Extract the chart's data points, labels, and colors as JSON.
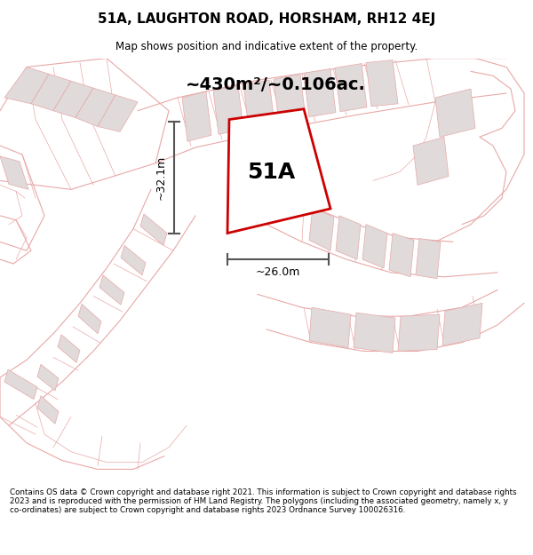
{
  "title_line1": "51A, LAUGHTON ROAD, HORSHAM, RH12 4EJ",
  "title_line2": "Map shows position and indicative extent of the property.",
  "area_label": "~430m²/~0.106ac.",
  "plot_label": "51A",
  "dim_height": "~32.1m",
  "dim_width": "~26.0m",
  "footer": "Contains OS data © Crown copyright and database right 2021. This information is subject to Crown copyright and database rights 2023 and is reproduced with the permission of HM Land Registry. The polygons (including the associated geometry, namely x, y co-ordinates) are subject to Crown copyright and database rights 2023 Ordnance Survey 100026316.",
  "bg_color": "#ffffff",
  "plot_color_red": "#cc0000",
  "building_fill": "#e0dada",
  "line_color_pink": "#e8a8a8",
  "dim_color": "#555555"
}
